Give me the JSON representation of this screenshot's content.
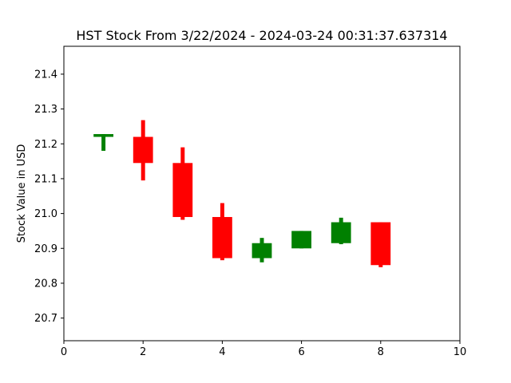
{
  "chart_data": {
    "type": "candlestick",
    "title": "HST Stock From 3/22/2024 - 2024-03-24 00:31:37.637314",
    "xlabel": "",
    "ylabel": "Stock Value in USD",
    "xlim": [
      0,
      10
    ],
    "ylim": [
      20.635,
      21.48
    ],
    "x_ticks": [
      0,
      2,
      4,
      6,
      8,
      10
    ],
    "y_ticks": [
      20.7,
      20.8,
      20.9,
      21.0,
      21.1,
      21.2,
      21.3,
      21.4
    ],
    "grid": false,
    "legend": "none",
    "colors": {
      "up": "#008000",
      "down": "#ff0000"
    },
    "candles": [
      {
        "x": 1,
        "open": 21.22,
        "close": 21.228,
        "high": 21.228,
        "low": 21.18,
        "direction": "up"
      },
      {
        "x": 2,
        "open": 21.22,
        "close": 21.145,
        "high": 21.268,
        "low": 21.095,
        "direction": "down"
      },
      {
        "x": 3,
        "open": 21.145,
        "close": 20.99,
        "high": 21.19,
        "low": 20.982,
        "direction": "down"
      },
      {
        "x": 4,
        "open": 20.99,
        "close": 20.872,
        "high": 21.03,
        "low": 20.866,
        "direction": "down"
      },
      {
        "x": 5,
        "open": 20.872,
        "close": 20.915,
        "high": 20.93,
        "low": 20.86,
        "direction": "up"
      },
      {
        "x": 6,
        "open": 20.9,
        "close": 20.95,
        "high": 20.95,
        "low": 20.9,
        "direction": "up"
      },
      {
        "x": 7,
        "open": 20.915,
        "close": 20.975,
        "high": 20.988,
        "low": 20.912,
        "direction": "up"
      },
      {
        "x": 8,
        "open": 20.975,
        "close": 20.852,
        "high": 20.975,
        "low": 20.846,
        "direction": "down"
      }
    ]
  }
}
